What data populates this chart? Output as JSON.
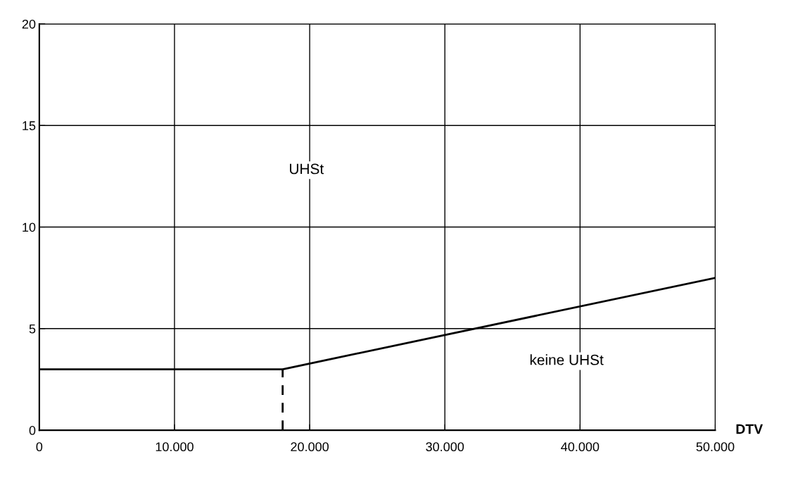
{
  "chart_data": {
    "type": "line",
    "xlabel": "DTV",
    "series": [
      {
        "x": [
          0,
          18000,
          50000
        ],
        "values": [
          3,
          3,
          7.5
        ],
        "color": "#000000",
        "line_style": "solid"
      },
      {
        "x": [
          18000,
          18000
        ],
        "values": [
          0,
          3
        ],
        "color": "#000000",
        "line_style": "dashed"
      }
    ],
    "xlim": [
      0,
      50000
    ],
    "ylim": [
      0,
      20
    ],
    "xticks": [
      0,
      {
        "value": 10000,
        "label": "10.000"
      },
      {
        "value": 20000,
        "label": "20.000"
      },
      {
        "value": 30000,
        "label": "30.000"
      },
      {
        "value": 40000,
        "label": "40.000"
      },
      {
        "value": 50000,
        "label": "50.000"
      }
    ],
    "yticks": [
      0,
      5,
      10,
      15,
      20
    ],
    "grid": true,
    "annotations": [
      "UHSt",
      "keine UHSt"
    ]
  }
}
